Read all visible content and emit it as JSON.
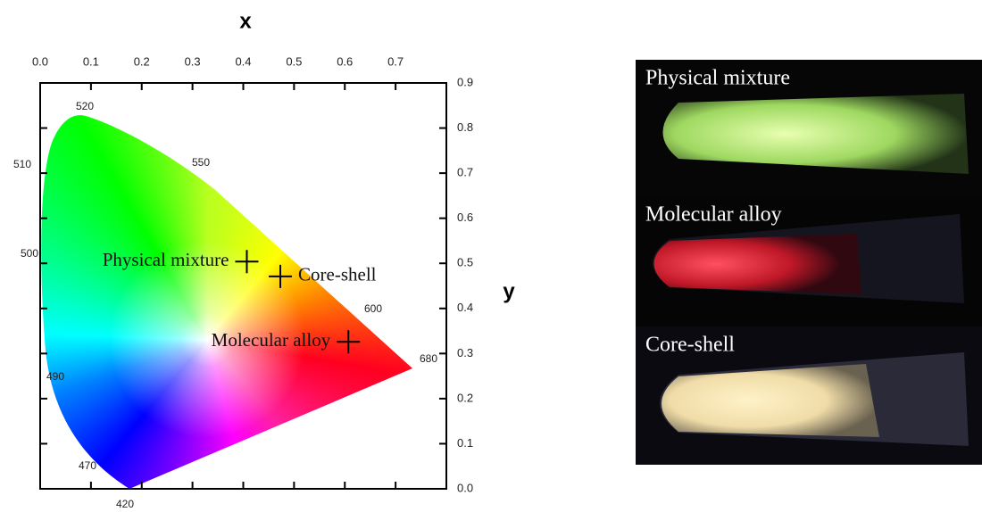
{
  "chart_data": {
    "type": "scatter",
    "xlabel": "x",
    "ylabel": "y",
    "xlim": [
      0,
      0.8
    ],
    "ylim": [
      0,
      0.9
    ],
    "xticks": [
      {
        "value": 0,
        "label": "0.0"
      },
      0.1,
      0.2,
      0.3,
      0.4,
      0.5,
      0.6,
      0.7
    ],
    "yticks": [
      {
        "value": 0,
        "label": "0.0"
      },
      0.1,
      0.2,
      0.3,
      0.4,
      0.5,
      0.6,
      0.7,
      0.8,
      0.9
    ],
    "annotations": [
      "520",
      "550",
      "510",
      "500",
      "490",
      "470",
      "420",
      "600",
      "680"
    ],
    "series": [
      {
        "name": "Physical mixture",
        "color": "#000000",
        "x": [
          0.407
        ],
        "values": [
          0.504
        ]
      },
      {
        "name": "Core-shell",
        "color": "#000000",
        "x": [
          0.473
        ],
        "values": [
          0.471
        ]
      },
      {
        "name": "Molecular alloy",
        "color": "#000000",
        "x": [
          0.607
        ],
        "values": [
          0.326
        ]
      }
    ]
  },
  "photo_labels": [
    "Physical mixture",
    "Molecular alloy",
    "Core-shell"
  ]
}
